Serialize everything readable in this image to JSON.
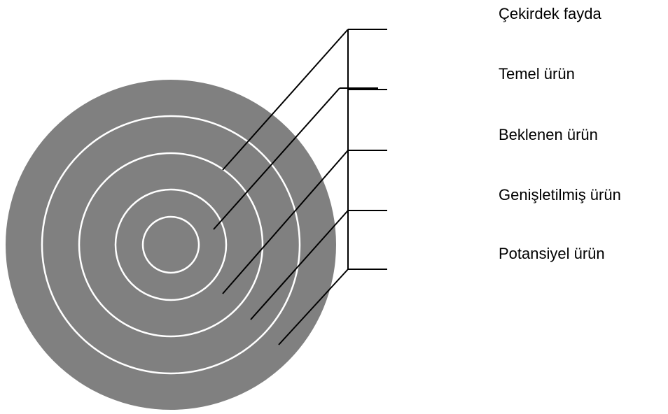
{
  "labels": [
    "Çekirdek fayda",
    "Temel ürün",
    "Beklenen ürün",
    "Genişletilmiş ürün",
    "Potansiyel ürün"
  ]
}
